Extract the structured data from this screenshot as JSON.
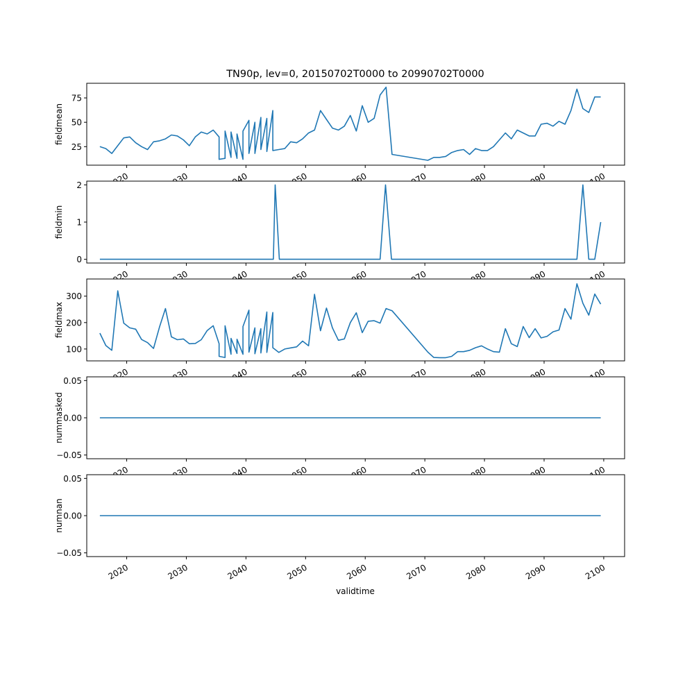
{
  "chart_data": {
    "type": "line",
    "title": "TN90p, lev=0, 20150702T0000 to 20990702T0000",
    "xlabel": "validtime",
    "x_ticks": [
      "2020",
      "2030",
      "2040",
      "2050",
      "2060",
      "2070",
      "2080",
      "2090",
      "2100"
    ],
    "x_tick_values": [
      2020,
      2030,
      2040,
      2050,
      2060,
      2070,
      2080,
      2090,
      2100
    ],
    "xlim": [
      2013.3,
      2103.5
    ],
    "color": "#1f77b4",
    "grid": false,
    "subplots": [
      {
        "ylabel": "fieldmean",
        "ylim": [
          6,
          90
        ],
        "y_ticks": [
          "25",
          "50",
          "75"
        ],
        "y_tick_values": [
          25,
          50,
          75
        ],
        "series": {
          "x": [
            2015.5,
            2016.5,
            2017.5,
            2018.5,
            2019.5,
            2020.5,
            2021.5,
            2022.5,
            2023.5,
            2024.5,
            2025.5,
            2026.5,
            2027.5,
            2028.5,
            2029.5,
            2030.5,
            2031.5,
            2032.5,
            2033.5,
            2034.5,
            2035.5,
            2035.5,
            2036.5,
            2036.5,
            2037.5,
            2037.5,
            2038.5,
            2038.5,
            2039.5,
            2039.5,
            2040.5,
            2040.5,
            2041.5,
            2041.5,
            2042.5,
            2042.5,
            2043.5,
            2043.5,
            2044.5,
            2044.5,
            2045.5,
            2046.5,
            2047.5,
            2048.5,
            2049.5,
            2050.5,
            2051.5,
            2052.5,
            2053.5,
            2054.5,
            2055.5,
            2056.5,
            2057.5,
            2058.5,
            2059.5,
            2060.5,
            2061.5,
            2062.5,
            2063.5,
            2064.5,
            2070.5,
            2071.5,
            2072.5,
            2073.5,
            2074.5,
            2075.5,
            2076.5,
            2077.5,
            2078.5,
            2079.5,
            2080.5,
            2081.5,
            2082.5,
            2083.5,
            2084.5,
            2085.5,
            2086.5,
            2087.5,
            2088.5,
            2089.5,
            2090.5,
            2091.5,
            2092.5,
            2093.5,
            2094.5,
            2095.5,
            2096.5,
            2097.5,
            2098.5,
            2099.5
          ],
          "y": [
            25,
            23,
            18,
            26,
            34,
            35,
            29,
            25,
            22,
            30,
            31,
            33,
            37,
            36,
            32,
            26,
            35,
            40,
            38,
            42,
            35,
            12,
            13,
            41,
            14,
            40,
            13,
            38,
            12,
            41,
            52,
            18,
            50,
            18,
            55,
            22,
            54,
            20,
            62,
            21,
            22,
            23,
            30,
            29,
            33,
            39,
            42,
            62,
            53,
            44,
            42,
            46,
            57,
            41,
            67,
            50,
            54,
            78,
            86,
            17,
            11,
            14,
            14,
            15,
            19,
            21,
            22,
            17,
            23,
            21,
            21,
            25,
            32,
            39,
            33,
            42,
            39,
            36,
            36,
            48,
            49,
            46,
            51,
            48,
            62,
            84,
            64,
            60,
            76,
            76
          ]
        }
      },
      {
        "ylabel": "fieldmin",
        "ylim": [
          -0.1,
          2.1
        ],
        "y_ticks": [
          "0",
          "1",
          "2"
        ],
        "y_tick_values": [
          0,
          1,
          2
        ],
        "series": {
          "x": [
            2015.5,
            2044.6,
            2044.9,
            2045.6,
            2062.5,
            2063.4,
            2064.4,
            2095.5,
            2096.5,
            2097.5,
            2098.5,
            2099.5
          ],
          "y": [
            0,
            0,
            2,
            0,
            0,
            2,
            0,
            0,
            2,
            0,
            0,
            1
          ]
        }
      },
      {
        "ylabel": "fieldmax",
        "ylim": [
          55,
          365
        ],
        "y_ticks": [
          "100",
          "200",
          "300"
        ],
        "y_tick_values": [
          100,
          200,
          300
        ],
        "series": {
          "x": [
            2015.5,
            2016.5,
            2017.5,
            2018.5,
            2019.5,
            2020.5,
            2021.5,
            2022.5,
            2023.5,
            2024.5,
            2025.5,
            2026.5,
            2027.5,
            2028.5,
            2029.5,
            2030.5,
            2031.5,
            2032.5,
            2033.5,
            2034.5,
            2035.5,
            2035.5,
            2036.5,
            2036.5,
            2037.5,
            2037.5,
            2038.5,
            2038.5,
            2039.5,
            2039.5,
            2040.5,
            2040.5,
            2041.5,
            2041.5,
            2042.5,
            2042.5,
            2043.5,
            2043.5,
            2044.5,
            2044.5,
            2045.5,
            2046.5,
            2047.5,
            2048.5,
            2049.5,
            2050.5,
            2051.5,
            2052.5,
            2053.5,
            2054.5,
            2055.5,
            2056.5,
            2057.5,
            2058.5,
            2059.5,
            2060.5,
            2061.5,
            2062.5,
            2063.5,
            2064.5,
            2070.5,
            2071.5,
            2072.5,
            2073.5,
            2074.5,
            2075.5,
            2076.5,
            2077.5,
            2078.5,
            2079.5,
            2080.5,
            2081.5,
            2082.5,
            2083.5,
            2084.5,
            2085.5,
            2086.5,
            2087.5,
            2088.5,
            2089.5,
            2090.5,
            2091.5,
            2092.5,
            2093.5,
            2094.5,
            2095.5,
            2096.5,
            2097.5,
            2098.5,
            2099.5
          ],
          "y": [
            160,
            113,
            95,
            320,
            198,
            180,
            175,
            136,
            124,
            102,
            183,
            253,
            146,
            135,
            138,
            120,
            121,
            135,
            170,
            188,
            120,
            72,
            68,
            188,
            80,
            140,
            83,
            137,
            80,
            185,
            247,
            88,
            180,
            82,
            177,
            85,
            240,
            87,
            238,
            105,
            87,
            100,
            104,
            108,
            130,
            112,
            307,
            169,
            255,
            180,
            133,
            138,
            200,
            237,
            162,
            205,
            207,
            198,
            253,
            245,
            88,
            68,
            67,
            67,
            72,
            90,
            90,
            95,
            105,
            112,
            100,
            90,
            88,
            177,
            120,
            109,
            185,
            143,
            177,
            142,
            148,
            165,
            172,
            253,
            213,
            347,
            273,
            228,
            308,
            270
          ]
        }
      },
      {
        "ylabel": "nummasked",
        "ylim": [
          -0.055,
          0.055
        ],
        "y_ticks": [
          "−0.05",
          "0.00",
          "0.05"
        ],
        "y_tick_values": [
          -0.05,
          0.0,
          0.05
        ],
        "series": {
          "x": [
            2015.5,
            2099.5
          ],
          "y": [
            0,
            0
          ]
        }
      },
      {
        "ylabel": "numnan",
        "ylim": [
          -0.055,
          0.055
        ],
        "y_ticks": [
          "−0.05",
          "0.00",
          "0.05"
        ],
        "y_tick_values": [
          -0.05,
          0.0,
          0.05
        ],
        "series": {
          "x": [
            2015.5,
            2099.5
          ],
          "y": [
            0,
            0
          ]
        }
      }
    ]
  }
}
